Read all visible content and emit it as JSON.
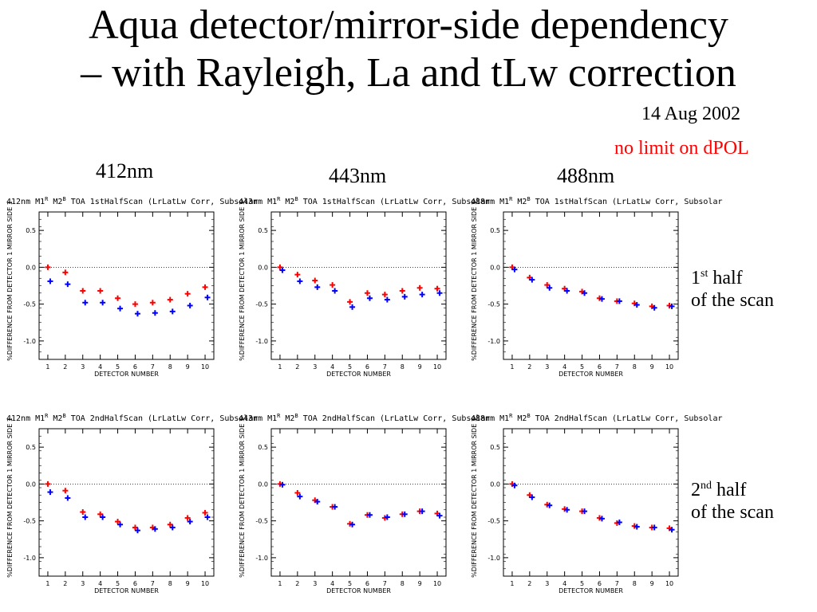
{
  "slide": {
    "title_line1": "Aqua detector/mirror-side dependency",
    "title_line2": "– with Rayleigh, La and tLw correction",
    "date": "14 Aug 2002",
    "note": "no limit on dPOL",
    "bands": [
      "412nm",
      "443nm",
      "488nm"
    ],
    "row1": {
      "ordinal": "1",
      "sup": "st",
      "word": " half",
      "line2": "of the scan"
    },
    "row2": {
      "ordinal": "2",
      "sup": "nd",
      "word": " half",
      "line2": "of the scan"
    }
  },
  "colors": {
    "series_red": "#ff0000",
    "series_blue": "#0000ff"
  },
  "chart_data": [
    {
      "type": "scatter",
      "title": "412nm M1^R M2^B TOA 1stHalfScan (LrLatLw Corr, Subsolar",
      "xlabel": "DETECTOR NUMBER",
      "ylabel": "%DIFFERENCE FROM DETECTOR 1 MIRROR SIDE 1",
      "xlim": [
        0.5,
        10.5
      ],
      "ylim": [
        -1.25,
        0.75
      ],
      "xticks": [
        1,
        2,
        3,
        4,
        5,
        6,
        7,
        8,
        9,
        10
      ],
      "yticks": [
        0.5,
        0.0,
        -0.5,
        -1.0
      ],
      "ytick_labels": [
        "0.5",
        "0.0",
        "-0.5",
        "-1.0"
      ],
      "zero_line": "dotted",
      "series": [
        {
          "color": "#ff0000",
          "x": [
            1,
            2,
            3,
            4,
            5,
            6,
            7,
            8,
            9,
            10
          ],
          "y": [
            0.0,
            -0.07,
            -0.32,
            -0.32,
            -0.42,
            -0.5,
            -0.48,
            -0.44,
            -0.36,
            -0.27
          ]
        },
        {
          "color": "#0000ff",
          "x": [
            1,
            2,
            3,
            4,
            5,
            6,
            7,
            8,
            9,
            10
          ],
          "y": [
            -0.19,
            -0.23,
            -0.48,
            -0.48,
            -0.56,
            -0.63,
            -0.62,
            -0.6,
            -0.52,
            -0.41
          ]
        }
      ]
    },
    {
      "type": "scatter",
      "title": "443nm M1^R M2^B TOA 1stHalfScan (LrLatLw Corr, Subsolar",
      "xlabel": "DETECTOR NUMBER",
      "ylabel": "%DIFFERENCE FROM DETECTOR 1 MIRROR SIDE 1",
      "xlim": [
        0.5,
        10.5
      ],
      "ylim": [
        -1.25,
        0.75
      ],
      "xticks": [
        1,
        2,
        3,
        4,
        5,
        6,
        7,
        8,
        9,
        10
      ],
      "yticks": [
        0.5,
        0.0,
        -0.5,
        -1.0
      ],
      "ytick_labels": [
        "0.5",
        "0.0",
        "-0.5",
        "-1.0"
      ],
      "zero_line": "dotted",
      "series": [
        {
          "color": "#ff0000",
          "x": [
            1,
            2,
            3,
            4,
            5,
            6,
            7,
            8,
            9,
            10
          ],
          "y": [
            0.0,
            -0.1,
            -0.18,
            -0.24,
            -0.47,
            -0.35,
            -0.37,
            -0.32,
            -0.28,
            -0.29
          ]
        },
        {
          "color": "#0000ff",
          "x": [
            1,
            2,
            3,
            4,
            5,
            6,
            7,
            8,
            9,
            10
          ],
          "y": [
            -0.04,
            -0.19,
            -0.27,
            -0.32,
            -0.54,
            -0.42,
            -0.44,
            -0.4,
            -0.37,
            -0.35
          ]
        }
      ]
    },
    {
      "type": "scatter",
      "title": "488nm M1^R M2^B TOA 1stHalfScan (LrLatLw Corr, Subsolar",
      "xlabel": "DETECTOR NUMBER",
      "ylabel": "%DIFFERENCE FROM DETECTOR 1 MIRROR SIDE 1",
      "xlim": [
        0.5,
        10.5
      ],
      "ylim": [
        -1.25,
        0.75
      ],
      "xticks": [
        1,
        2,
        3,
        4,
        5,
        6,
        7,
        8,
        9,
        10
      ],
      "yticks": [
        0.5,
        0.0,
        -0.5,
        -1.0
      ],
      "ytick_labels": [
        "0.5",
        "0.0",
        "-0.5",
        "-1.0"
      ],
      "zero_line": "dotted",
      "series": [
        {
          "color": "#ff0000",
          "x": [
            1,
            2,
            3,
            4,
            5,
            6,
            7,
            8,
            9,
            10
          ],
          "y": [
            0.0,
            -0.14,
            -0.24,
            -0.29,
            -0.33,
            -0.42,
            -0.46,
            -0.49,
            -0.53,
            -0.52
          ]
        },
        {
          "color": "#0000ff",
          "x": [
            1,
            2,
            3,
            4,
            5,
            6,
            7,
            8,
            9,
            10
          ],
          "y": [
            -0.03,
            -0.17,
            -0.28,
            -0.32,
            -0.35,
            -0.43,
            -0.46,
            -0.51,
            -0.55,
            -0.53
          ]
        }
      ]
    },
    {
      "type": "scatter",
      "title": "412nm M1^R M2^B TOA 2ndHalfScan (LrLatLw Corr, Subsolar",
      "xlabel": "DETECTOR NUMBER",
      "ylabel": "%DIFFERENCE FROM DETECTOR 1 MIRROR SIDE 1",
      "xlim": [
        0.5,
        10.5
      ],
      "ylim": [
        -1.25,
        0.75
      ],
      "xticks": [
        1,
        2,
        3,
        4,
        5,
        6,
        7,
        8,
        9,
        10
      ],
      "yticks": [
        0.5,
        0.0,
        -0.5,
        -1.0
      ],
      "ytick_labels": [
        "0.5",
        "0.0",
        "-0.5",
        "-1.0"
      ],
      "zero_line": "dotted",
      "series": [
        {
          "color": "#ff0000",
          "x": [
            1,
            2,
            3,
            4,
            5,
            6,
            7,
            8,
            9,
            10
          ],
          "y": [
            0.0,
            -0.09,
            -0.38,
            -0.41,
            -0.51,
            -0.59,
            -0.59,
            -0.55,
            -0.46,
            -0.39
          ]
        },
        {
          "color": "#0000ff",
          "x": [
            1,
            2,
            3,
            4,
            5,
            6,
            7,
            8,
            9,
            10
          ],
          "y": [
            -0.11,
            -0.19,
            -0.45,
            -0.45,
            -0.55,
            -0.63,
            -0.61,
            -0.59,
            -0.51,
            -0.45
          ]
        }
      ]
    },
    {
      "type": "scatter",
      "title": "443nm M1^R M2^B TOA 2ndHalfScan (LrLatLw Corr, Subsolar",
      "xlabel": "DETECTOR NUMBER",
      "ylabel": "%DIFFERENCE FROM DETECTOR 1 MIRROR SIDE 1",
      "xlim": [
        0.5,
        10.5
      ],
      "ylim": [
        -1.25,
        0.75
      ],
      "xticks": [
        1,
        2,
        3,
        4,
        5,
        6,
        7,
        8,
        9,
        10
      ],
      "yticks": [
        0.5,
        0.0,
        -0.5,
        -1.0
      ],
      "ytick_labels": [
        "0.5",
        "0.0",
        "-0.5",
        "-1.0"
      ],
      "zero_line": "dotted",
      "series": [
        {
          "color": "#ff0000",
          "x": [
            1,
            2,
            3,
            4,
            5,
            6,
            7,
            8,
            9,
            10
          ],
          "y": [
            0.0,
            -0.12,
            -0.22,
            -0.31,
            -0.54,
            -0.42,
            -0.46,
            -0.41,
            -0.37,
            -0.4
          ]
        },
        {
          "color": "#0000ff",
          "x": [
            1,
            2,
            3,
            4,
            5,
            6,
            7,
            8,
            9,
            10
          ],
          "y": [
            -0.01,
            -0.17,
            -0.24,
            -0.31,
            -0.55,
            -0.42,
            -0.45,
            -0.41,
            -0.37,
            -0.43
          ]
        }
      ]
    },
    {
      "type": "scatter",
      "title": "488nm M1^R M2^B TOA 2ndHalfScan (LrLatLw Corr, Subsolar",
      "xlabel": "DETECTOR NUMBER",
      "ylabel": "%DIFFERENCE FROM DETECTOR 1 MIRROR SIDE 1",
      "xlim": [
        0.5,
        10.5
      ],
      "ylim": [
        -1.25,
        0.75
      ],
      "xticks": [
        1,
        2,
        3,
        4,
        5,
        6,
        7,
        8,
        9,
        10
      ],
      "yticks": [
        0.5,
        0.0,
        -0.5,
        -1.0
      ],
      "ytick_labels": [
        "0.5",
        "0.0",
        "-0.5",
        "-1.0"
      ],
      "zero_line": "dotted",
      "series": [
        {
          "color": "#ff0000",
          "x": [
            1,
            2,
            3,
            4,
            5,
            6,
            7,
            8,
            9,
            10
          ],
          "y": [
            0.0,
            -0.15,
            -0.28,
            -0.34,
            -0.37,
            -0.46,
            -0.53,
            -0.57,
            -0.59,
            -0.6
          ]
        },
        {
          "color": "#0000ff",
          "x": [
            1,
            2,
            3,
            4,
            5,
            6,
            7,
            8,
            9,
            10
          ],
          "y": [
            -0.02,
            -0.18,
            -0.29,
            -0.35,
            -0.37,
            -0.47,
            -0.52,
            -0.58,
            -0.59,
            -0.62
          ]
        }
      ]
    }
  ]
}
